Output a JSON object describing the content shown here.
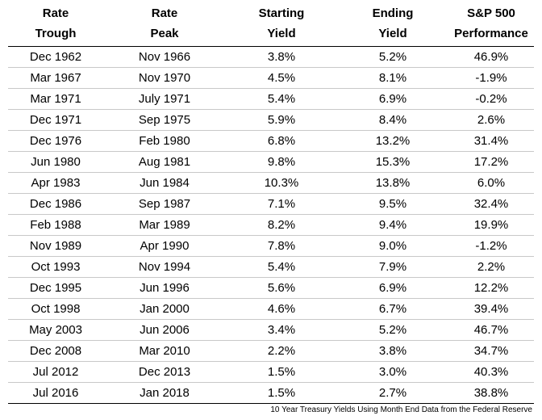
{
  "headers": [
    [
      "Rate",
      "Trough"
    ],
    [
      "Rate",
      "Peak"
    ],
    [
      "Starting",
      "Yield"
    ],
    [
      "Ending",
      "Yield"
    ],
    [
      "S&P 500",
      "Performance"
    ]
  ],
  "rows": [
    [
      "Dec 1962",
      "Nov 1966",
      "3.8%",
      "5.2%",
      "46.9%"
    ],
    [
      "Mar 1967",
      "Nov 1970",
      "4.5%",
      "8.1%",
      "-1.9%"
    ],
    [
      "Mar 1971",
      "July 1971",
      "5.4%",
      "6.9%",
      "-0.2%"
    ],
    [
      "Dec 1971",
      "Sep 1975",
      "5.9%",
      "8.4%",
      "2.6%"
    ],
    [
      "Dec 1976",
      "Feb 1980",
      "6.8%",
      "13.2%",
      "31.4%"
    ],
    [
      "Jun 1980",
      "Aug 1981",
      "9.8%",
      "15.3%",
      "17.2%"
    ],
    [
      "Apr 1983",
      "Jun 1984",
      "10.3%",
      "13.8%",
      "6.0%"
    ],
    [
      "Dec 1986",
      "Sep 1987",
      "7.1%",
      "9.5%",
      "32.4%"
    ],
    [
      "Feb 1988",
      "Mar 1989",
      "8.2%",
      "9.4%",
      "19.9%"
    ],
    [
      "Nov 1989",
      "Apr 1990",
      "7.8%",
      "9.0%",
      "-1.2%"
    ],
    [
      "Oct 1993",
      "Nov 1994",
      "5.4%",
      "7.9%",
      "2.2%"
    ],
    [
      "Dec 1995",
      "Jun 1996",
      "5.6%",
      "6.9%",
      "12.2%"
    ],
    [
      "Oct 1998",
      "Jan 2000",
      "4.6%",
      "6.7%",
      "39.4%"
    ],
    [
      "May 2003",
      "Jun 2006",
      "3.4%",
      "5.2%",
      "46.7%"
    ],
    [
      "Dec 2008",
      "Mar 2010",
      "2.2%",
      "3.8%",
      "34.7%"
    ],
    [
      "Jul 2012",
      "Dec 2013",
      "1.5%",
      "3.0%",
      "40.3%"
    ],
    [
      "Jul 2016",
      "Jan 2018",
      "1.5%",
      "2.7%",
      "38.8%"
    ]
  ],
  "footnote": "10 Year Treasury Yields Using Month End Data from the Federal Reserve"
}
